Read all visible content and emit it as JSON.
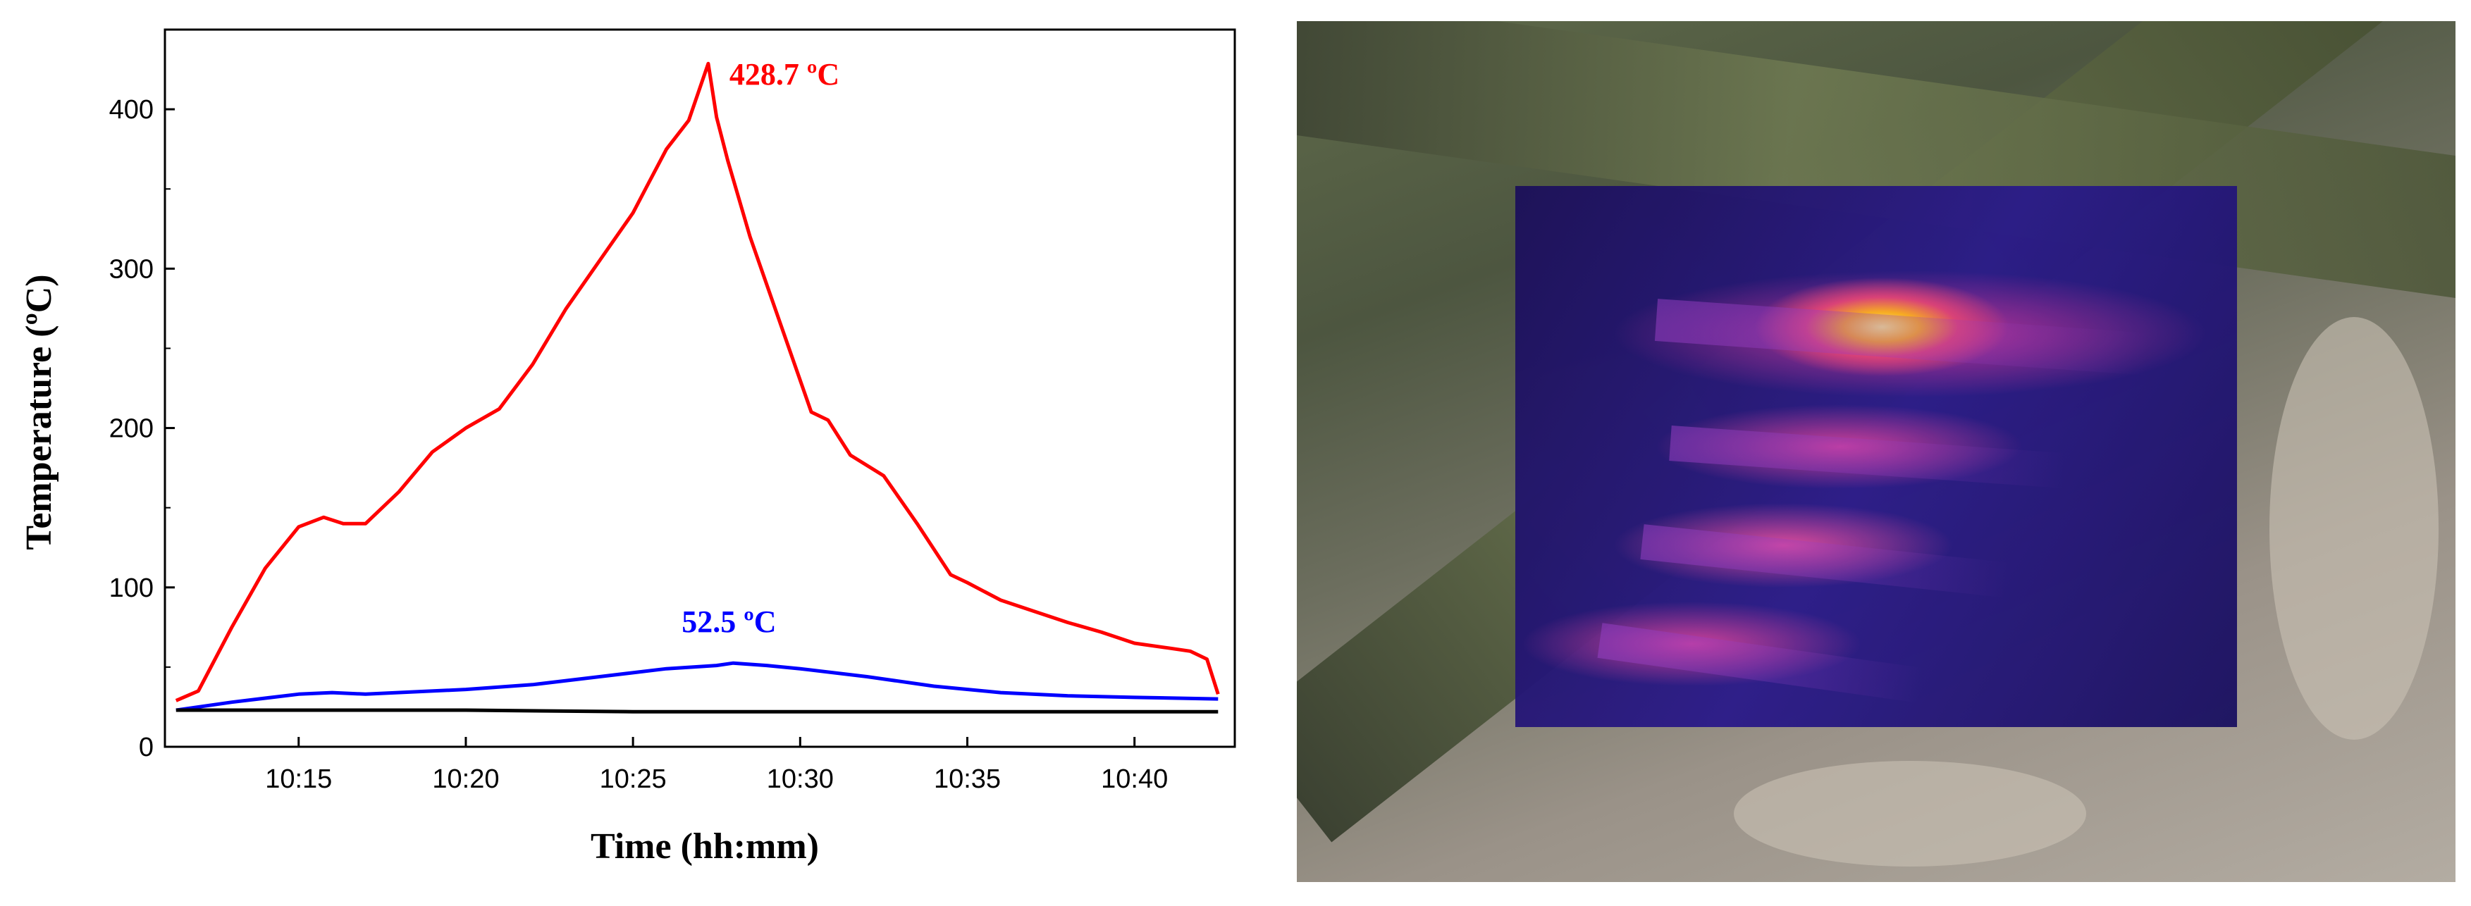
{
  "chart_data": {
    "type": "line",
    "title": "",
    "xlabel": "Time (hh:mm)",
    "ylabel": "Temperature (ºC)",
    "x_unit": "hh:mm",
    "xlim": [
      "10:11",
      "10:43"
    ],
    "ylim": [
      0,
      450
    ],
    "x_ticks": [
      "10:15",
      "10:20",
      "10:25",
      "10:30",
      "10:35",
      "10:40"
    ],
    "y_ticks": [
      0,
      100,
      200,
      300,
      400
    ],
    "grid": false,
    "legend": "none",
    "series": [
      {
        "color": "#ff0000",
        "x": [
          "10:11:20",
          "10:12:00",
          "10:13:00",
          "10:14:00",
          "10:15:00",
          "10:15:45",
          "10:16:20",
          "10:17:00",
          "10:18:00",
          "10:19:00",
          "10:20:00",
          "10:21:00",
          "10:22:00",
          "10:23:00",
          "10:24:00",
          "10:25:00",
          "10:25:30",
          "10:26:00",
          "10:26:40",
          "10:27:15",
          "10:27:30",
          "10:27:50",
          "10:28:30",
          "10:29:30",
          "10:30:20",
          "10:30:50",
          "10:31:30",
          "10:32:30",
          "10:33:30",
          "10:34:30",
          "10:35:00",
          "10:36:00",
          "10:37:00",
          "10:38:00",
          "10:39:00",
          "10:40:00",
          "10:41:00",
          "10:41:40",
          "10:42:10",
          "10:42:30"
        ],
        "values": [
          29,
          35,
          75,
          112,
          138,
          144,
          140,
          140,
          160,
          185,
          200,
          212,
          240,
          275,
          305,
          335,
          355,
          375,
          393,
          428.7,
          395,
          368,
          320,
          260,
          210,
          205,
          183,
          170,
          140,
          108,
          103,
          92,
          85,
          78,
          72,
          65,
          62,
          60,
          55,
          33
        ]
      },
      {
        "color": "#0000ff",
        "x": [
          "10:11:20",
          "10:13:00",
          "10:15:00",
          "10:16:00",
          "10:17:00",
          "10:20:00",
          "10:22:00",
          "10:24:00",
          "10:26:00",
          "10:27:30",
          "10:28:00",
          "10:29:00",
          "10:30:00",
          "10:32:00",
          "10:34:00",
          "10:36:00",
          "10:38:00",
          "10:40:00",
          "10:42:30"
        ],
        "values": [
          23,
          28,
          33,
          34,
          33,
          36,
          39,
          44,
          49,
          51,
          52.5,
          51,
          49,
          44,
          38,
          34,
          32,
          31,
          30
        ]
      },
      {
        "color": "#000000",
        "x": [
          "10:11:20",
          "10:16:00",
          "10:20:00",
          "10:25:00",
          "10:30:00",
          "10:35:00",
          "10:40:00",
          "10:42:30"
        ],
        "values": [
          23,
          23,
          23,
          22,
          22,
          22,
          22,
          22
        ]
      }
    ],
    "annotations": [
      {
        "text": "428.7 ºC",
        "x": "10:27:15",
        "y": 428.7,
        "color": "#ff0000"
      },
      {
        "text": "52.5 ºC",
        "x": "10:28:00",
        "y": 52.5,
        "color": "#0000ff"
      }
    ]
  }
}
